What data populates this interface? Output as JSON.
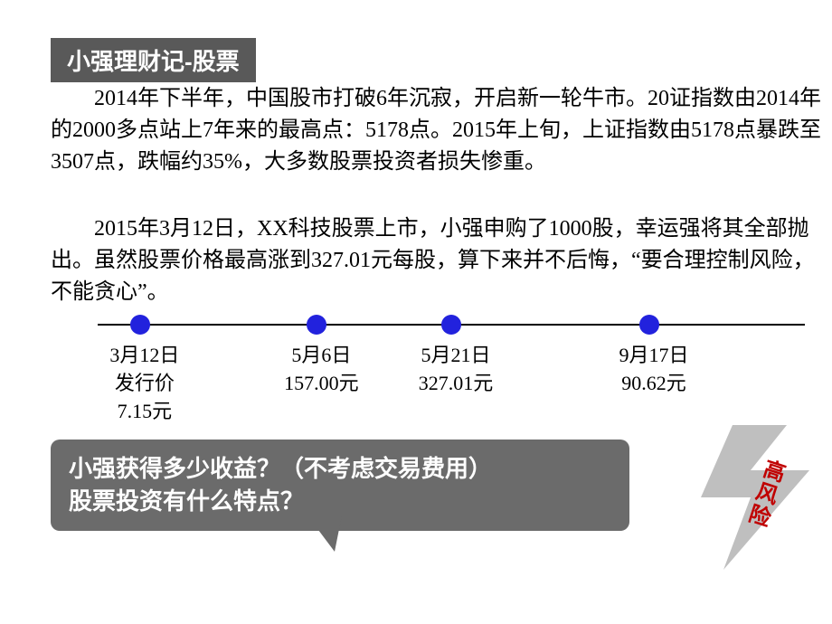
{
  "title": "小强理财记-股票",
  "paragraph1": "2014年下半年，中国股市打破6年沉寂，开启新一轮牛市。20证指数由2014年的2000多点站上7年来的最高点：5178点。2015年上旬，上证指数由5178点暴跌至3507点，跌幅约35%，大多数股票投资者损失惨重。",
  "paragraph2": "2015年3月12日，XX科技股票上市，小强申购了1000股，幸运强将其全部抛出。虽然股票价格最高涨到327.01元每股，算下来并不后悔，“要合理控制风险，不能贪心”。",
  "timeline": {
    "line_color": "#000000",
    "dot_color": "#2222dd",
    "dot_radius": 11,
    "points": [
      {
        "x_pct": 6,
        "date": "3月12日",
        "value_lines": [
          "发行价",
          "7.15元"
        ]
      },
      {
        "x_pct": 31,
        "date": "5月6日",
        "value_lines": [
          "157.00元"
        ]
      },
      {
        "x_pct": 50,
        "date": "5月21日",
        "value_lines": [
          "327.01元"
        ]
      },
      {
        "x_pct": 78,
        "date": "9月17日",
        "value_lines": [
          "90.62元"
        ]
      }
    ]
  },
  "question": {
    "line1": "小强获得多少收益？（不考虑交易费用）",
    "line2": "股票投资有什么特点？",
    "bg_color": "#6b6b6b",
    "text_color": "#ffffff",
    "font_size": 26
  },
  "risk_badge": {
    "text": "高风险",
    "text_color": "#c00000",
    "shape_color": "#bfbfbf",
    "font_size": 24
  },
  "colors": {
    "title_bg": "#595959",
    "title_fg": "#ffffff",
    "body_text": "#000000",
    "background": "#ffffff"
  },
  "body_font_size": 24
}
